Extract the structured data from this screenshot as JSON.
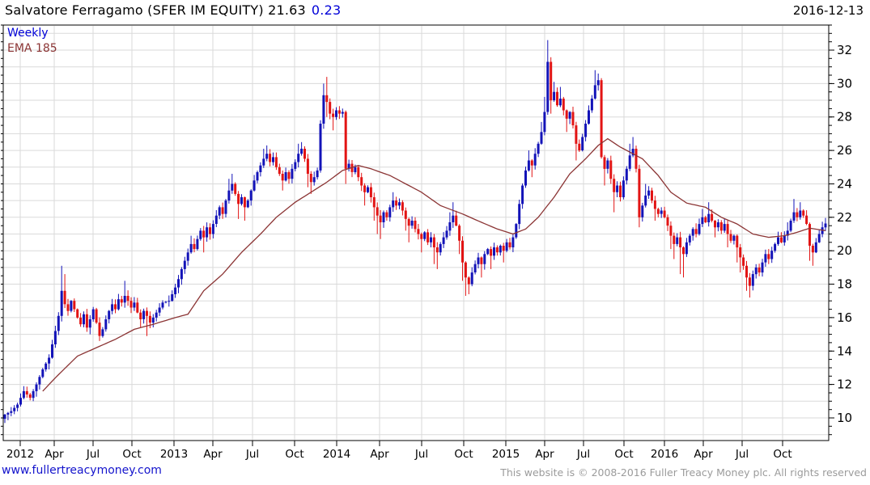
{
  "header": {
    "title_main": "Salvatore Ferragamo (SFER IM EQUITY) 21.63",
    "title_change": "0.23",
    "date": "2016-12-13"
  },
  "legend": {
    "timeframe": "Weekly",
    "overlay": "EMA 185"
  },
  "footer": {
    "site_link": "www.fullertreacymoney.com",
    "copyright": "This website is © 2008-2016 Fuller Treacy Money plc. All rights reserved"
  },
  "colors": {
    "up_candle": "#1313b8",
    "down_candle": "#e21414",
    "ema_line": "#8b3434",
    "grid": "#dadada",
    "axis": "#000000",
    "accent_blue": "#0000d8",
    "footer_gray": "#9b9b9b"
  },
  "chart_data": {
    "type": "candlestick",
    "timeframe": "weekly",
    "instrument": "Salvatore Ferragamo",
    "ticker": "SFER IM EQUITY",
    "last_price": 21.63,
    "change": 0.23,
    "overlay": "EMA 185",
    "ylim": [
      8.65,
      33.5
    ],
    "y_ticks": [
      10,
      12,
      14,
      16,
      18,
      20,
      22,
      24,
      26,
      28,
      30,
      32
    ],
    "y_gridline_step": 1,
    "y_minor_tick_step": 0.5,
    "legend_position": "top-left",
    "x_ticks": [
      {
        "label": "2012",
        "pos": 0.0206
      },
      {
        "label": "Apr",
        "pos": 0.0618
      },
      {
        "label": "Jul",
        "pos": 0.1088
      },
      {
        "label": "Oct",
        "pos": 0.1559
      },
      {
        "label": "2013",
        "pos": 0.2069
      },
      {
        "label": "Apr",
        "pos": 0.2539
      },
      {
        "label": "Jul",
        "pos": 0.302
      },
      {
        "label": "Oct",
        "pos": 0.3529
      },
      {
        "label": "2014",
        "pos": 0.4039
      },
      {
        "label": "Apr",
        "pos": 0.4559
      },
      {
        "label": "Jul",
        "pos": 0.5069
      },
      {
        "label": "Oct",
        "pos": 0.5578
      },
      {
        "label": "2015",
        "pos": 0.6088
      },
      {
        "label": "Apr",
        "pos": 0.6559
      },
      {
        "label": "Jul",
        "pos": 0.7029
      },
      {
        "label": "Oct",
        "pos": 0.752
      },
      {
        "label": "2016",
        "pos": 0.801
      },
      {
        "label": "Apr",
        "pos": 0.848
      },
      {
        "label": "Jul",
        "pos": 0.8951
      },
      {
        "label": "Oct",
        "pos": 0.9441
      }
    ],
    "bars_total": 261,
    "keyframe_format": "[bar_index, close, spike_high, spike_low]",
    "price_keyframes": [
      [
        0,
        10.2,
        null,
        9.7
      ],
      [
        2,
        10.4
      ],
      [
        4,
        10.8
      ],
      [
        6,
        11.6,
        11.9
      ],
      [
        8,
        11.2
      ],
      [
        10,
        12.0
      ],
      [
        12,
        12.9
      ],
      [
        14,
        13.6,
        null,
        12.9
      ],
      [
        16,
        15.2
      ],
      [
        17,
        16.1
      ],
      [
        18,
        17.6,
        19.1
      ],
      [
        19,
        16.8,
        18.6
      ],
      [
        20,
        16.4
      ],
      [
        21,
        17.0
      ],
      [
        23,
        16.0
      ],
      [
        24,
        15.6
      ],
      [
        25,
        16.2
      ],
      [
        26,
        15.4
      ],
      [
        27,
        15.9,
        null,
        15.0
      ],
      [
        28,
        16.5
      ],
      [
        29,
        15.7
      ],
      [
        30,
        14.9,
        null,
        14.6
      ],
      [
        31,
        15.3
      ],
      [
        32,
        15.9
      ],
      [
        33,
        16.4
      ],
      [
        34,
        16.8
      ],
      [
        35,
        16.5
      ],
      [
        36,
        17.1
      ],
      [
        37,
        16.9
      ],
      [
        38,
        17.3,
        18.2
      ],
      [
        39,
        17.0
      ],
      [
        40,
        16.6
      ],
      [
        41,
        16.9
      ],
      [
        42,
        16.3
      ],
      [
        43,
        15.9,
        null,
        15.4
      ],
      [
        44,
        16.4
      ],
      [
        45,
        16.1,
        null,
        14.9
      ],
      [
        46,
        15.7
      ],
      [
        47,
        16.0
      ],
      [
        48,
        16.3
      ],
      [
        50,
        16.9
      ],
      [
        52,
        17.0
      ],
      [
        53,
        17.4
      ],
      [
        54,
        17.8
      ],
      [
        55,
        18.3
      ],
      [
        56,
        18.9
      ],
      [
        57,
        19.4
      ],
      [
        58,
        19.9
      ],
      [
        59,
        20.4,
        20.9
      ],
      [
        60,
        20.1
      ],
      [
        61,
        20.7
      ],
      [
        62,
        21.2
      ],
      [
        63,
        20.8,
        null,
        19.9
      ],
      [
        64,
        21.4
      ],
      [
        65,
        21.0
      ],
      [
        66,
        21.6
      ],
      [
        67,
        22.1
      ],
      [
        68,
        22.6
      ],
      [
        69,
        22.2
      ],
      [
        70,
        23.0
      ],
      [
        71,
        23.6,
        24.3
      ],
      [
        72,
        24.0,
        24.6
      ],
      [
        73,
        23.4
      ],
      [
        74,
        22.8,
        null,
        21.9
      ],
      [
        75,
        23.2
      ],
      [
        76,
        22.6,
        null,
        21.8
      ],
      [
        77,
        23.0
      ],
      [
        78,
        23.6
      ],
      [
        79,
        24.2
      ],
      [
        80,
        24.7
      ],
      [
        81,
        25.1
      ],
      [
        82,
        25.5,
        26.1
      ],
      [
        83,
        25.8,
        26.3
      ],
      [
        84,
        25.3
      ],
      [
        85,
        25.6
      ],
      [
        86,
        25.0
      ],
      [
        87,
        24.6
      ],
      [
        88,
        24.2,
        null,
        23.6
      ],
      [
        89,
        24.7
      ],
      [
        90,
        24.3
      ],
      [
        91,
        24.9
      ],
      [
        92,
        25.3
      ],
      [
        93,
        25.8,
        26.4
      ],
      [
        94,
        26.1,
        26.5
      ],
      [
        95,
        25.5
      ],
      [
        96,
        24.6,
        null,
        23.8
      ],
      [
        97,
        24.1,
        null,
        23.4
      ],
      [
        98,
        24.4
      ],
      [
        99,
        24.8
      ],
      [
        100,
        27.6
      ],
      [
        101,
        29.3,
        30.0
      ],
      [
        102,
        28.9,
        30.4,
        28.0
      ],
      [
        103,
        28.2
      ],
      [
        104,
        28.0,
        null,
        27.2
      ],
      [
        105,
        28.4
      ],
      [
        106,
        28.2
      ],
      [
        107,
        28.3
      ],
      [
        108,
        24.9,
        null,
        24.0
      ],
      [
        109,
        25.2
      ],
      [
        110,
        24.7
      ],
      [
        111,
        25.0
      ],
      [
        112,
        24.4
      ],
      [
        113,
        23.9
      ],
      [
        114,
        23.5,
        null,
        22.7
      ],
      [
        115,
        23.8
      ],
      [
        116,
        23.2
      ],
      [
        117,
        22.6,
        null,
        21.8
      ],
      [
        118,
        22.1,
        null,
        21.0
      ],
      [
        119,
        21.7,
        null,
        20.7
      ],
      [
        120,
        22.3
      ],
      [
        121,
        22.0
      ],
      [
        122,
        22.6
      ],
      [
        123,
        23.0,
        23.5
      ],
      [
        124,
        22.7
      ],
      [
        125,
        22.9
      ],
      [
        126,
        22.4
      ],
      [
        127,
        21.9,
        null,
        21.2
      ],
      [
        128,
        21.5,
        null,
        20.5
      ],
      [
        129,
        21.8
      ],
      [
        130,
        21.3
      ],
      [
        131,
        21.0
      ],
      [
        132,
        20.7,
        null,
        19.9
      ],
      [
        133,
        21.1
      ],
      [
        134,
        20.5
      ],
      [
        135,
        20.8
      ],
      [
        136,
        20.2,
        null,
        19.2
      ],
      [
        137,
        19.9,
        null,
        18.9
      ],
      [
        138,
        20.4
      ],
      [
        139,
        20.8
      ],
      [
        140,
        21.2
      ],
      [
        141,
        21.7,
        22.3
      ],
      [
        142,
        22.1,
        22.9
      ],
      [
        143,
        21.5
      ],
      [
        144,
        20.6,
        null,
        19.8
      ],
      [
        145,
        19.3,
        null,
        18.2
      ],
      [
        146,
        18.4,
        null,
        17.3
      ],
      [
        147,
        18.0,
        null,
        17.4
      ],
      [
        148,
        18.7
      ],
      [
        149,
        19.2
      ],
      [
        150,
        19.6
      ],
      [
        151,
        19.2,
        null,
        18.4
      ],
      [
        152,
        19.8
      ],
      [
        153,
        20.1
      ],
      [
        154,
        19.7,
        null,
        18.9
      ],
      [
        155,
        20.2
      ],
      [
        156,
        19.9
      ],
      [
        157,
        20.3
      ],
      [
        158,
        20.0,
        null,
        19.3
      ],
      [
        159,
        20.5
      ],
      [
        160,
        20.2
      ],
      [
        161,
        20.8
      ],
      [
        162,
        21.6
      ],
      [
        163,
        22.8
      ],
      [
        164,
        23.9
      ],
      [
        165,
        24.8
      ],
      [
        166,
        25.4,
        26.0
      ],
      [
        167,
        25.1,
        null,
        24.4
      ],
      [
        168,
        25.8
      ],
      [
        169,
        26.4
      ],
      [
        170,
        27.1,
        27.7
      ],
      [
        171,
        28.3,
        29.2
      ],
      [
        172,
        31.3,
        32.6
      ],
      [
        173,
        29.0,
        null,
        28.2
      ],
      [
        174,
        29.5,
        30.1
      ],
      [
        175,
        28.7
      ],
      [
        176,
        29.1,
        29.8
      ],
      [
        177,
        28.4
      ],
      [
        178,
        27.9,
        null,
        27.1
      ],
      [
        179,
        28.3
      ],
      [
        180,
        27.5
      ],
      [
        181,
        26.4,
        null,
        25.4
      ],
      [
        182,
        26.0
      ],
      [
        183,
        26.8
      ],
      [
        184,
        27.6
      ],
      [
        185,
        28.4
      ],
      [
        186,
        29.1
      ],
      [
        187,
        29.9,
        30.8
      ],
      [
        188,
        30.2,
        30.6
      ],
      [
        189,
        25.6
      ],
      [
        190,
        24.9,
        null,
        23.9
      ],
      [
        191,
        25.4
      ],
      [
        192,
        24.3
      ],
      [
        193,
        23.5,
        null,
        22.3
      ],
      [
        194,
        23.9
      ],
      [
        195,
        23.2
      ],
      [
        196,
        24.2
      ],
      [
        197,
        24.9
      ],
      [
        198,
        25.7,
        26.4
      ],
      [
        199,
        26.1,
        26.8
      ],
      [
        200,
        24.9
      ],
      [
        201,
        22.0,
        null,
        21.4
      ],
      [
        202,
        22.7
      ],
      [
        203,
        23.3,
        24.0
      ],
      [
        204,
        23.6
      ],
      [
        205,
        23.0
      ],
      [
        206,
        22.5,
        null,
        21.8
      ],
      [
        207,
        22.2
      ],
      [
        208,
        22.4
      ],
      [
        209,
        22.0
      ],
      [
        210,
        21.5
      ],
      [
        211,
        20.9,
        null,
        20.1
      ],
      [
        212,
        20.4,
        null,
        19.5
      ],
      [
        213,
        20.8
      ],
      [
        214,
        20.2,
        null,
        18.6
      ],
      [
        215,
        19.8,
        null,
        18.4
      ],
      [
        216,
        20.5
      ],
      [
        217,
        20.9
      ],
      [
        218,
        21.3
      ],
      [
        219,
        21.0
      ],
      [
        220,
        21.6
      ],
      [
        221,
        22.0,
        22.5
      ],
      [
        222,
        21.7
      ],
      [
        223,
        22.2,
        22.9
      ],
      [
        224,
        21.8
      ],
      [
        225,
        21.4,
        null,
        20.8
      ],
      [
        226,
        21.7
      ],
      [
        227,
        21.2
      ],
      [
        228,
        21.6
      ],
      [
        229,
        21.0,
        null,
        20.2
      ],
      [
        230,
        20.6
      ],
      [
        231,
        20.9
      ],
      [
        232,
        20.2,
        null,
        19.3
      ],
      [
        233,
        19.6,
        null,
        18.7
      ],
      [
        234,
        19.1
      ],
      [
        235,
        18.4,
        null,
        17.6
      ],
      [
        236,
        17.9,
        null,
        17.2
      ],
      [
        237,
        18.6
      ],
      [
        238,
        19.0
      ],
      [
        239,
        18.7
      ],
      [
        240,
        19.3
      ],
      [
        241,
        19.8
      ],
      [
        242,
        19.5
      ],
      [
        243,
        20.0
      ],
      [
        244,
        20.4
      ],
      [
        245,
        20.8
      ],
      [
        246,
        20.5
      ],
      [
        247,
        20.9
      ],
      [
        248,
        21.2,
        21.7
      ],
      [
        249,
        21.8
      ],
      [
        250,
        22.3,
        23.1
      ],
      [
        251,
        22.0
      ],
      [
        252,
        22.4,
        22.9
      ],
      [
        253,
        22.1
      ],
      [
        254,
        21.6
      ],
      [
        255,
        20.3,
        null,
        19.4
      ],
      [
        256,
        19.9,
        null,
        19.1
      ],
      [
        257,
        20.5
      ],
      [
        258,
        21.0
      ],
      [
        259,
        21.4
      ],
      [
        260,
        21.63
      ]
    ],
    "ema_keyframes": [
      [
        12,
        11.6
      ],
      [
        16,
        12.4
      ],
      [
        23,
        13.7
      ],
      [
        29,
        14.2
      ],
      [
        35,
        14.7
      ],
      [
        41,
        15.3
      ],
      [
        47,
        15.6
      ],
      [
        54,
        16.0
      ],
      [
        58,
        16.2
      ],
      [
        63,
        17.6
      ],
      [
        69,
        18.6
      ],
      [
        75,
        19.9
      ],
      [
        81,
        21.0
      ],
      [
        86,
        22.0
      ],
      [
        92,
        22.9
      ],
      [
        97,
        23.5
      ],
      [
        102,
        24.1
      ],
      [
        107,
        24.8
      ],
      [
        112,
        25.1
      ],
      [
        116,
        24.9
      ],
      [
        122,
        24.5
      ],
      [
        127,
        24.0
      ],
      [
        132,
        23.5
      ],
      [
        138,
        22.7
      ],
      [
        145,
        22.2
      ],
      [
        151,
        21.7
      ],
      [
        156,
        21.3
      ],
      [
        161,
        21.0
      ],
      [
        165,
        21.3
      ],
      [
        169,
        22.0
      ],
      [
        174,
        23.2
      ],
      [
        179,
        24.6
      ],
      [
        184,
        25.5
      ],
      [
        188,
        26.3
      ],
      [
        191,
        26.7
      ],
      [
        195,
        26.2
      ],
      [
        198,
        25.9
      ],
      [
        202,
        25.5
      ],
      [
        207,
        24.5
      ],
      [
        211,
        23.5
      ],
      [
        216,
        22.85
      ],
      [
        222,
        22.6
      ],
      [
        227,
        22.0
      ],
      [
        232,
        21.6
      ],
      [
        237,
        21.0
      ],
      [
        242,
        20.8
      ],
      [
        247,
        20.9
      ],
      [
        251,
        21.1
      ],
      [
        255,
        21.35
      ],
      [
        260,
        21.2
      ]
    ]
  }
}
